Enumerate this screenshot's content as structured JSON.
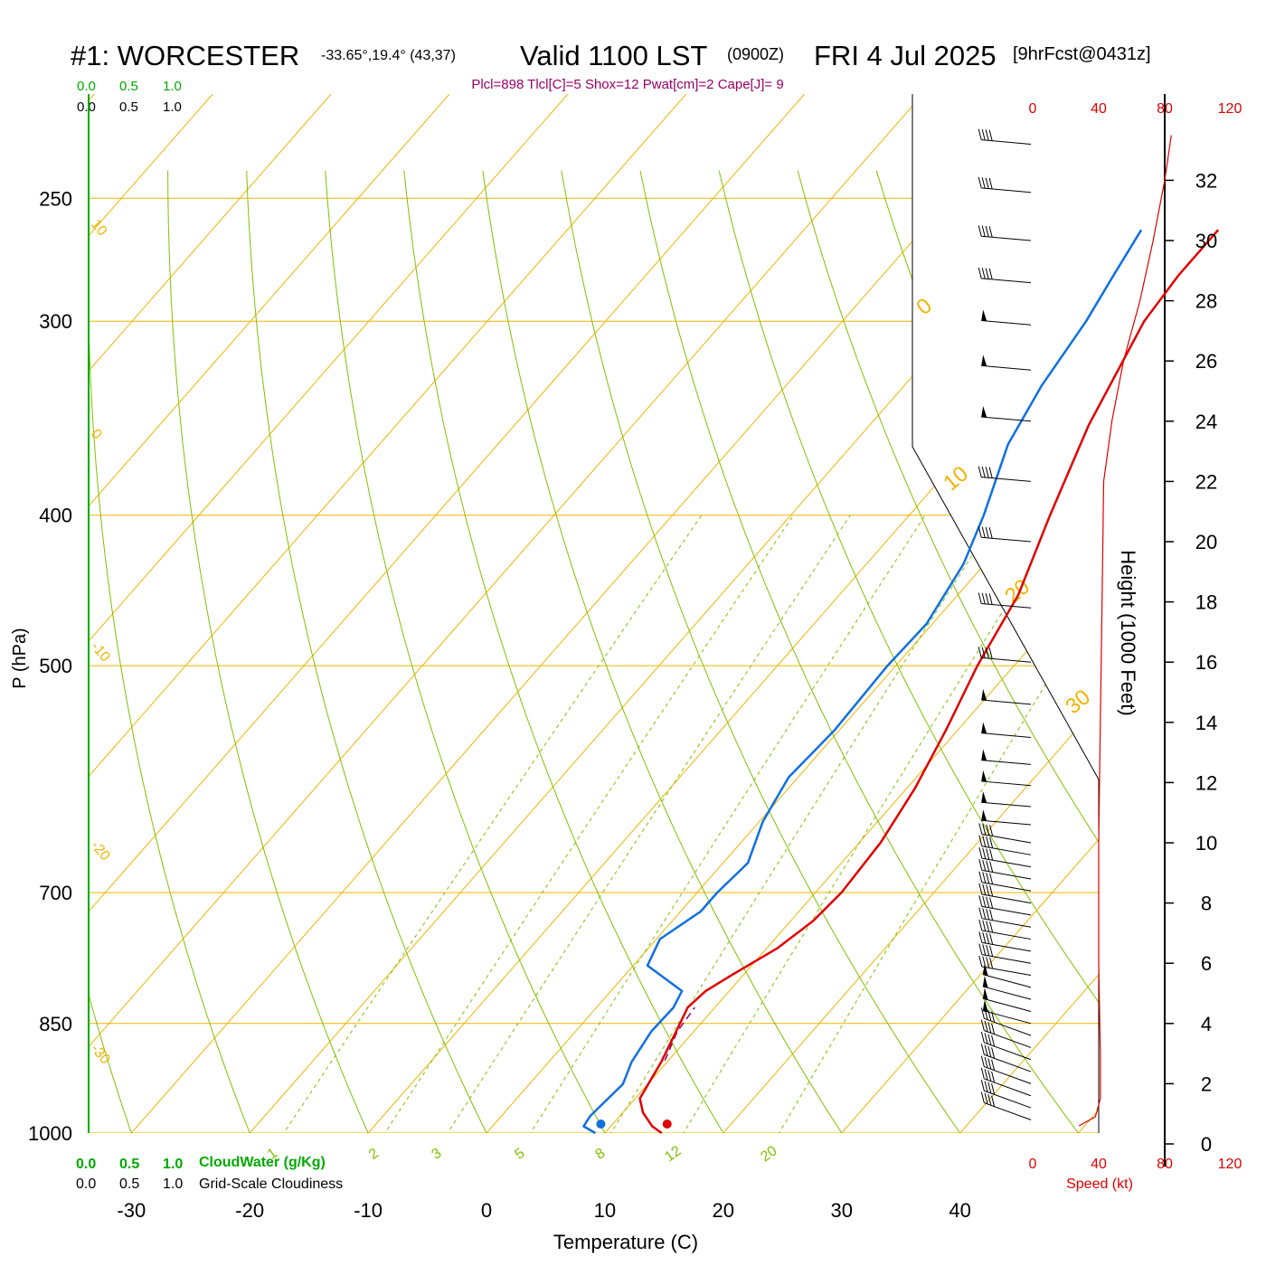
{
  "header": {
    "station": "#1: WORCESTER",
    "coords": "-33.65°,19.4° (43,37)",
    "valid": "Valid 1100 LST",
    "zulu": "(0900Z)",
    "date": "FRI 4 Jul 2025",
    "forecast": "[9hrFcst@0431z]",
    "indices": "Plcl=898 Tlcl[C]=5 Shox=12 Pwat[cm]=2 Cape[J]= 9"
  },
  "scales": {
    "cloud_top_green": [
      "0.0",
      "0.5",
      "1.0"
    ],
    "cloud_top_black": [
      "0.0",
      "0.5",
      "1.0"
    ],
    "cloud_bottom_green": [
      "0.0",
      "0.5",
      "1.0"
    ],
    "cloudwater_label": "CloudWater (g/Kg)",
    "cloud_bottom_black": [
      "0.0",
      "0.5",
      "1.0"
    ],
    "cloudiness_label": "Grid-Scale Cloudiness",
    "speed_top": [
      "0",
      "40",
      "80",
      "120"
    ],
    "speed_bottom": [
      "0",
      "40",
      "80",
      "120"
    ],
    "speed_label": "Speed (kt)"
  },
  "colors": {
    "isotherm": "#f0b400",
    "dry_adiabat": "#80c000",
    "mixing_ratio": "#80c000",
    "temperature": "#e00000",
    "dewpoint": "#1070e0",
    "title_accent": "#990066",
    "cloud_green": "#00aa00",
    "speed": "#e00000"
  },
  "chart_data": {
    "type": "skew-t",
    "xlabel": "Temperature (C)",
    "ylabel": "P (hPa)",
    "height_label": "Height (1000 Feet)",
    "x_ticks": [
      -30,
      -20,
      -10,
      0,
      10,
      20,
      30,
      40
    ],
    "pressure_ticks": [
      250,
      300,
      400,
      500,
      700,
      850,
      1000
    ],
    "height_ticks": [
      0,
      2,
      4,
      6,
      8,
      10,
      12,
      14,
      16,
      18,
      20,
      22,
      24,
      26,
      28,
      30,
      32
    ],
    "isotherm_labels": [
      "10",
      "0",
      "-10",
      "-20",
      "-30",
      "0",
      "10",
      "20",
      "30"
    ],
    "mixing_ratio_labels": [
      "1",
      "2",
      "3",
      "5",
      "8",
      "12",
      "20"
    ],
    "temperature_profile": [
      {
        "p": 1000,
        "t": 14.8
      },
      {
        "p": 990,
        "t": 13.5
      },
      {
        "p": 970,
        "t": 11.7
      },
      {
        "p": 950,
        "t": 10.4
      },
      {
        "p": 900,
        "t": 9.5
      },
      {
        "p": 860,
        "t": 8.5
      },
      {
        "p": 830,
        "t": 7.7
      },
      {
        "p": 810,
        "t": 8.0
      },
      {
        "p": 790,
        "t": 9.1
      },
      {
        "p": 760,
        "t": 10.9
      },
      {
        "p": 730,
        "t": 11.9
      },
      {
        "p": 700,
        "t": 12.2
      },
      {
        "p": 650,
        "t": 11.8
      },
      {
        "p": 600,
        "t": 10.7
      },
      {
        "p": 550,
        "t": 9.0
      },
      {
        "p": 500,
        "t": 6.9
      },
      {
        "p": 450,
        "t": 5.1
      },
      {
        "p": 400,
        "t": 1.9
      },
      {
        "p": 350,
        "t": -1.5
      },
      {
        "p": 300,
        "t": -4.5
      },
      {
        "p": 280,
        "t": -5.0
      },
      {
        "p": 262,
        "t": -5.0
      }
    ],
    "dewpoint_profile": [
      {
        "p": 1000,
        "t": 9.2
      },
      {
        "p": 990,
        "t": 7.7
      },
      {
        "p": 975,
        "t": 7.5
      },
      {
        "p": 930,
        "t": 7.9
      },
      {
        "p": 900,
        "t": 7.0
      },
      {
        "p": 860,
        "t": 6.4
      },
      {
        "p": 830,
        "t": 6.5
      },
      {
        "p": 810,
        "t": 6.0
      },
      {
        "p": 780,
        "t": 1.2
      },
      {
        "p": 750,
        "t": 0.3
      },
      {
        "p": 720,
        "t": 1.7
      },
      {
        "p": 700,
        "t": 1.7
      },
      {
        "p": 670,
        "t": 2.1
      },
      {
        "p": 630,
        "t": 0.3
      },
      {
        "p": 590,
        "t": -0.8
      },
      {
        "p": 550,
        "t": -0.4
      },
      {
        "p": 500,
        "t": -0.7
      },
      {
        "p": 470,
        "t": -0.5
      },
      {
        "p": 430,
        "t": -1.8
      },
      {
        "p": 400,
        "t": -3.7
      },
      {
        "p": 360,
        "t": -6.9
      },
      {
        "p": 330,
        "t": -8.4
      },
      {
        "p": 300,
        "t": -9.4
      },
      {
        "p": 280,
        "t": -10.5
      },
      {
        "p": 262,
        "t": -11.5
      }
    ],
    "parcel_trace": [
      {
        "p": 898,
        "t": 9.7
      },
      {
        "p": 860,
        "t": 8.6
      },
      {
        "p": 830,
        "t": 8.3
      }
    ],
    "wind_speed_profile": [
      {
        "h": 0.6,
        "kt": 28
      },
      {
        "h": 0.9,
        "kt": 38
      },
      {
        "h": 1.5,
        "kt": 41
      },
      {
        "h": 3,
        "kt": 41
      },
      {
        "h": 6,
        "kt": 40
      },
      {
        "h": 10,
        "kt": 40
      },
      {
        "h": 14,
        "kt": 41
      },
      {
        "h": 18,
        "kt": 42
      },
      {
        "h": 22,
        "kt": 43
      },
      {
        "h": 24,
        "kt": 48
      },
      {
        "h": 26,
        "kt": 55
      },
      {
        "h": 28,
        "kt": 65
      },
      {
        "h": 30,
        "kt": 73
      },
      {
        "h": 32,
        "kt": 80
      },
      {
        "h": 33.5,
        "kt": 84
      }
    ],
    "wind_barbs": [
      {
        "h": 0.8,
        "dir": 290,
        "kt": 40
      },
      {
        "h": 1.2,
        "dir": 290,
        "kt": 40
      },
      {
        "h": 1.6,
        "dir": 290,
        "kt": 40
      },
      {
        "h": 2.0,
        "dir": 290,
        "kt": 40
      },
      {
        "h": 2.4,
        "dir": 290,
        "kt": 40
      },
      {
        "h": 2.8,
        "dir": 290,
        "kt": 40
      },
      {
        "h": 3.2,
        "dir": 290,
        "kt": 40
      },
      {
        "h": 3.6,
        "dir": 290,
        "kt": 40
      },
      {
        "h": 4.0,
        "dir": 285,
        "kt": 50
      },
      {
        "h": 4.4,
        "dir": 285,
        "kt": 50
      },
      {
        "h": 4.8,
        "dir": 285,
        "kt": 50
      },
      {
        "h": 5.2,
        "dir": 285,
        "kt": 50
      },
      {
        "h": 5.6,
        "dir": 280,
        "kt": 40
      },
      {
        "h": 6.0,
        "dir": 280,
        "kt": 40
      },
      {
        "h": 6.4,
        "dir": 280,
        "kt": 40
      },
      {
        "h": 6.8,
        "dir": 280,
        "kt": 40
      },
      {
        "h": 7.2,
        "dir": 280,
        "kt": 40
      },
      {
        "h": 7.6,
        "dir": 280,
        "kt": 40
      },
      {
        "h": 8.0,
        "dir": 280,
        "kt": 40
      },
      {
        "h": 8.4,
        "dir": 280,
        "kt": 40
      },
      {
        "h": 8.8,
        "dir": 280,
        "kt": 40
      },
      {
        "h": 9.2,
        "dir": 280,
        "kt": 40
      },
      {
        "h": 9.6,
        "dir": 280,
        "kt": 40
      },
      {
        "h": 10.0,
        "dir": 280,
        "kt": 40
      },
      {
        "h": 10.6,
        "dir": 275,
        "kt": 50
      },
      {
        "h": 11.2,
        "dir": 275,
        "kt": 50
      },
      {
        "h": 11.9,
        "dir": 275,
        "kt": 50
      },
      {
        "h": 12.6,
        "dir": 275,
        "kt": 50
      },
      {
        "h": 13.5,
        "dir": 275,
        "kt": 50
      },
      {
        "h": 14.6,
        "dir": 275,
        "kt": 50
      },
      {
        "h": 16.0,
        "dir": 275,
        "kt": 40
      },
      {
        "h": 17.8,
        "dir": 275,
        "kt": 40
      },
      {
        "h": 20.0,
        "dir": 275,
        "kt": 40
      },
      {
        "h": 22.0,
        "dir": 275,
        "kt": 40
      },
      {
        "h": 24.0,
        "dir": 275,
        "kt": 50
      },
      {
        "h": 25.7,
        "dir": 275,
        "kt": 50
      },
      {
        "h": 27.2,
        "dir": 275,
        "kt": 50
      },
      {
        "h": 28.6,
        "dir": 275,
        "kt": 40
      },
      {
        "h": 30.0,
        "dir": 275,
        "kt": 40
      },
      {
        "h": 31.6,
        "dir": 275,
        "kt": 40
      },
      {
        "h": 33.2,
        "dir": 275,
        "kt": 40
      }
    ]
  }
}
